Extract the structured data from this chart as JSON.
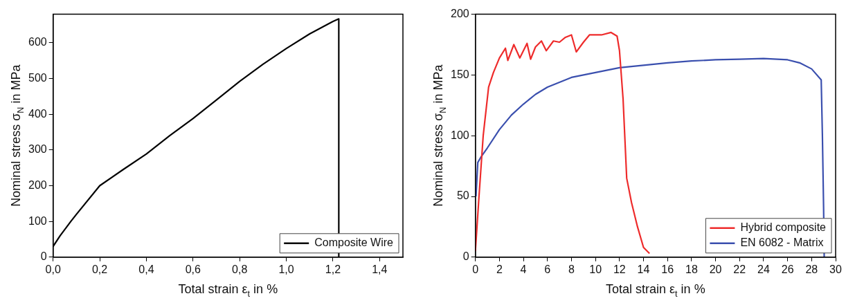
{
  "chart_data": [
    {
      "type": "line",
      "xlabel": "Total strain ε$_{t}$ in %",
      "ylabel": "Nominal stress σ$_{N}$ in MPa",
      "xlim": [
        0,
        1.5
      ],
      "ylim": [
        0,
        680
      ],
      "xticks": [
        {
          "value": 0,
          "label": "0,0"
        },
        {
          "value": 0.2,
          "label": "0,2"
        },
        {
          "value": 0.4,
          "label": "0,4"
        },
        {
          "value": 0.6,
          "label": "0,6"
        },
        {
          "value": 0.8,
          "label": "0,8"
        },
        {
          "value": 1.0,
          "label": "1,0"
        },
        {
          "value": 1.2,
          "label": "1,2"
        },
        {
          "value": 1.4,
          "label": "1,4"
        }
      ],
      "yticks": [
        0,
        100,
        200,
        300,
        400,
        500,
        600
      ],
      "grid": false,
      "legend": "bottom right",
      "series": [
        {
          "name": "Composite Wire",
          "color": "#000000",
          "x": [
            0,
            0.03,
            0.076,
            0.1,
            0.2,
            0.3,
            0.4,
            0.5,
            0.6,
            0.7,
            0.8,
            0.9,
            1.0,
            1.1,
            1.2,
            1.225,
            1.225
          ],
          "values": [
            30,
            60,
            100,
            120,
            200,
            245,
            289,
            340,
            388,
            440,
            492,
            540,
            584,
            625,
            660,
            667,
            0
          ]
        }
      ]
    },
    {
      "type": "line",
      "xlabel": "Total strain ε$_{t}$ in %",
      "ylabel": "Nominal stress σ$_{N}$ in MPa",
      "xlim": [
        0,
        30
      ],
      "ylim": [
        0,
        200
      ],
      "xticks": [
        0,
        2,
        4,
        6,
        8,
        10,
        12,
        14,
        16,
        18,
        20,
        22,
        24,
        26,
        28,
        30
      ],
      "yticks": [
        0,
        50,
        100,
        150,
        200
      ],
      "grid": false,
      "legend": "bottom right",
      "series": [
        {
          "name": "Hybrid composite",
          "color": "#ee2b2b",
          "x": [
            0,
            0.3,
            0.65,
            1.1,
            1.5,
            2.0,
            2.5,
            2.7,
            3.2,
            3.7,
            4.3,
            4.6,
            5.0,
            5.5,
            5.9,
            6.5,
            7.0,
            7.5,
            8.0,
            8.4,
            9.0,
            9.5,
            10.5,
            11.3,
            11.8,
            12.0,
            12.3,
            12.6,
            13.0,
            13.5,
            14.0,
            14.5
          ],
          "values": [
            5,
            50,
            100,
            140,
            152,
            164,
            172,
            162,
            175,
            164,
            176,
            163,
            173,
            178,
            170,
            178,
            177,
            181,
            183,
            169,
            177,
            183,
            183,
            185,
            182,
            170,
            130,
            65,
            45,
            25,
            8,
            3
          ]
        },
        {
          "name": "EN 6082 - Matrix",
          "color": "#3a4fae",
          "x": [
            0.05,
            0.2,
            0.5,
            1,
            2,
            3,
            4,
            5,
            6,
            7,
            8,
            10,
            12,
            14,
            16,
            18,
            20,
            22,
            24,
            26,
            27,
            28,
            28.8,
            28.9,
            29,
            29.05
          ],
          "values": [
            50,
            78,
            83,
            90,
            105,
            117,
            126,
            134,
            140,
            144,
            148,
            152,
            156,
            158,
            160,
            161.5,
            162.5,
            163,
            163.5,
            162.5,
            160,
            155,
            146,
            100,
            40,
            0
          ]
        }
      ]
    }
  ]
}
